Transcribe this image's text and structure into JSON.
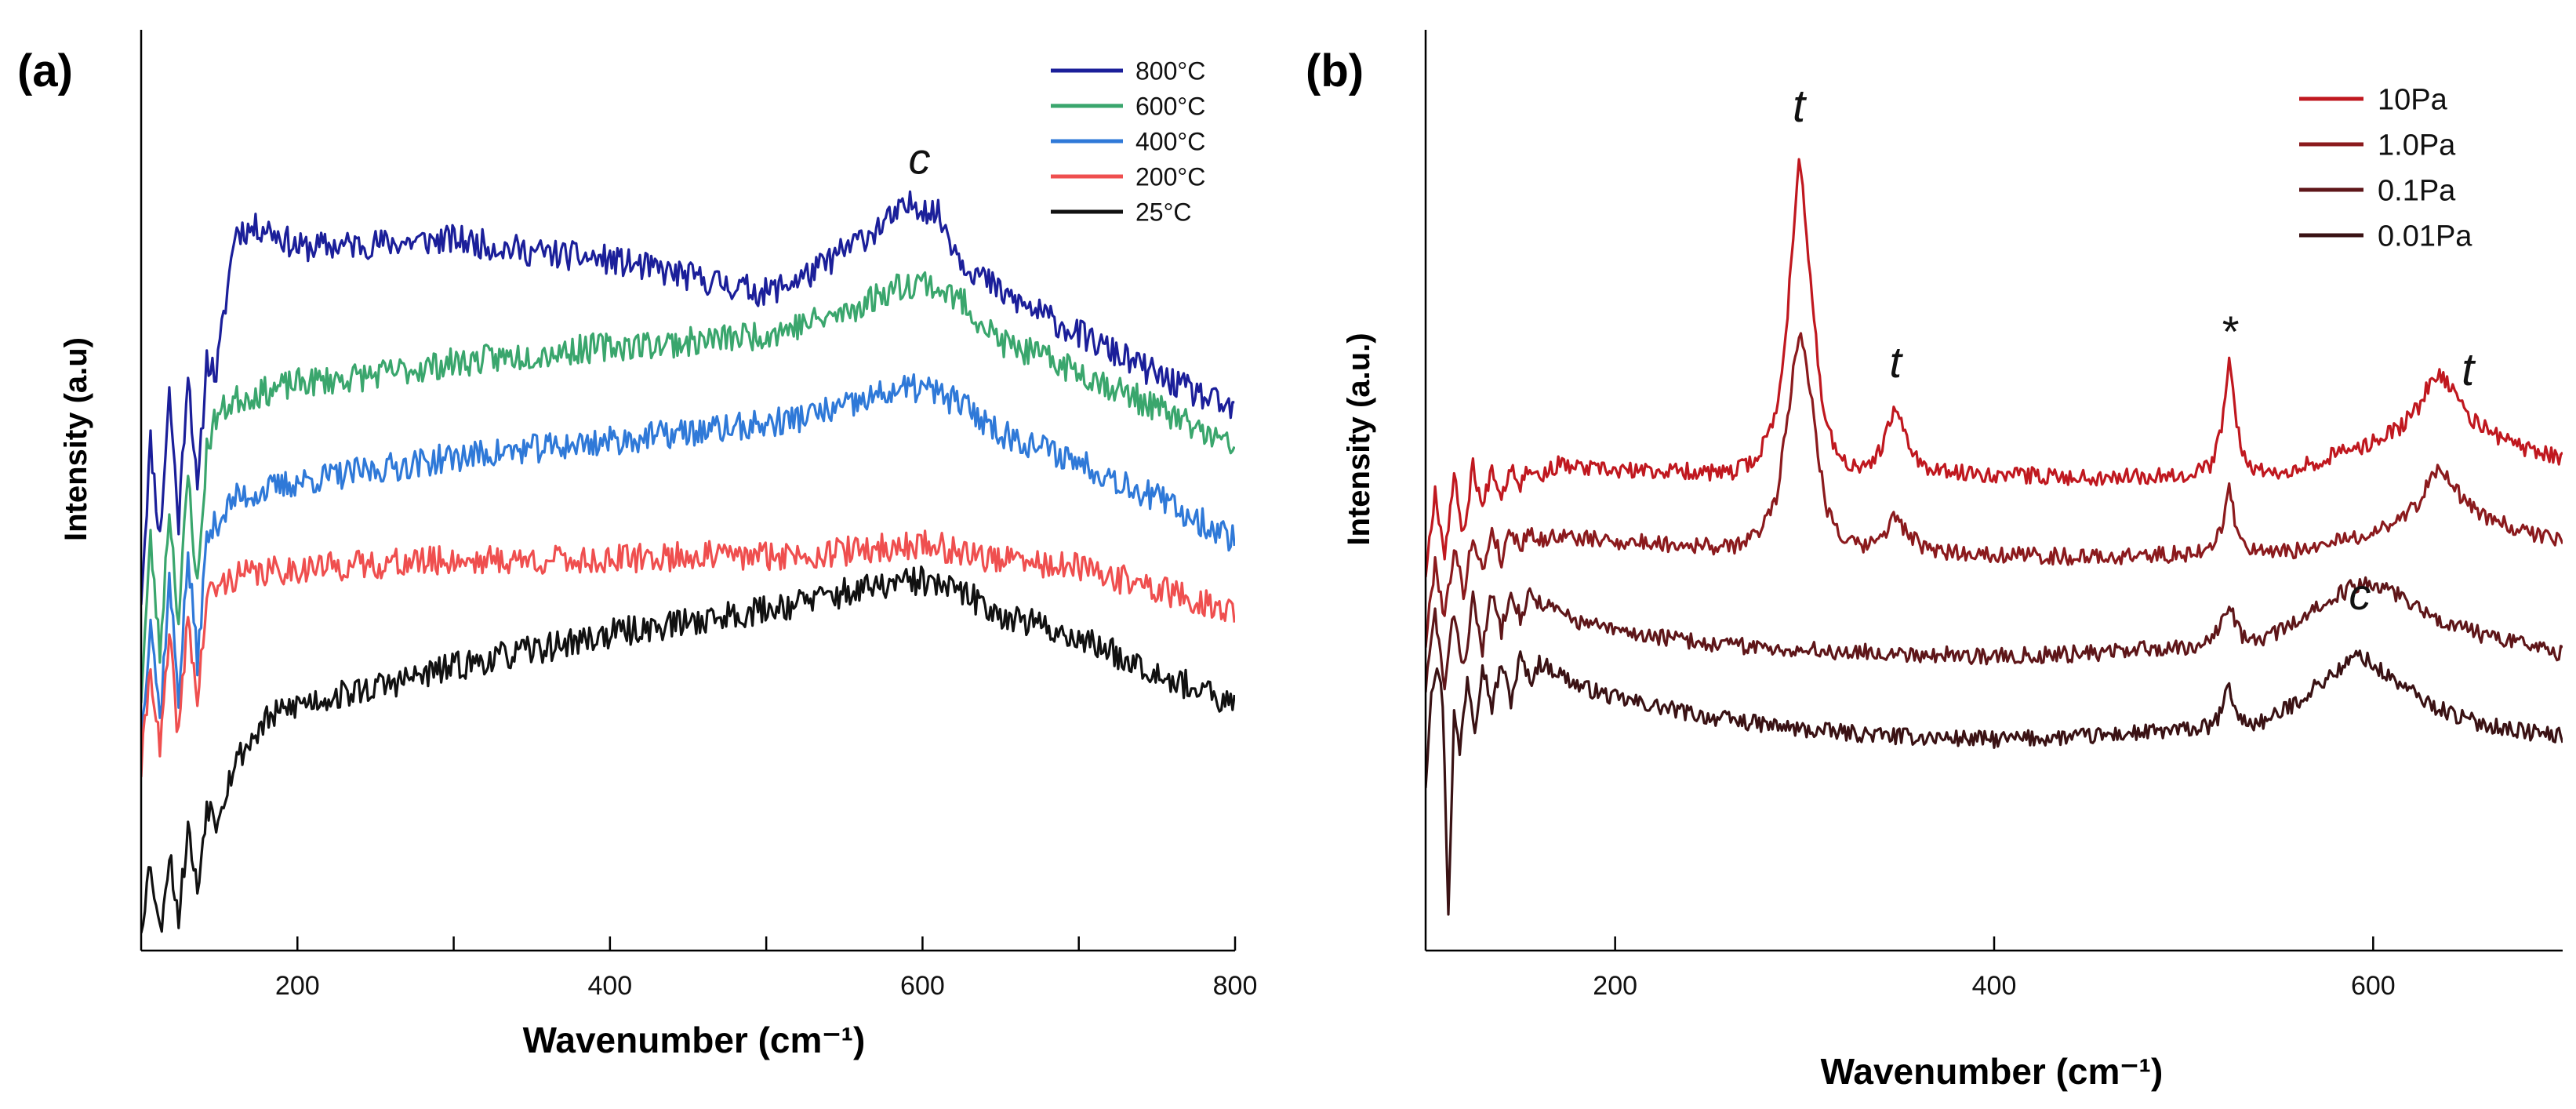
{
  "chart_data": [
    {
      "type": "line",
      "panel_label": "(a)",
      "xlabel": "Wavenumber (cm⁻¹)",
      "ylabel": "Intensity (a.u)",
      "xlim": [
        100,
        800
      ],
      "x_ticks": [
        200,
        400,
        600,
        800
      ],
      "x_tick_labels": [
        "200",
        "400",
        "600",
        "800"
      ],
      "x_minor_ticks": [
        300,
        500,
        700
      ],
      "y_ticks_labeled": false,
      "grid": false,
      "legend_position": "top-right",
      "annotations": [
        {
          "text": "c",
          "x": 598,
          "series": "800°C"
        }
      ],
      "series": [
        {
          "name": "800°C",
          "color": "#1b1f9a",
          "x": [
            100,
            106,
            112,
            118,
            124,
            130,
            136,
            142,
            148,
            160,
            180,
            200,
            250,
            300,
            350,
            400,
            450,
            500,
            530,
            560,
            580,
            595,
            610,
            625,
            650,
            700,
            750,
            800
          ],
          "y": [
            2.1,
            4.0,
            2.8,
            4.6,
            3.0,
            4.9,
            3.3,
            5.0,
            4.8,
            6.55,
            6.6,
            6.35,
            6.4,
            6.45,
            6.3,
            6.2,
            6.0,
            5.8,
            6.05,
            6.45,
            6.7,
            6.9,
            6.75,
            6.2,
            5.8,
            5.3,
            4.8,
            4.35
          ]
        },
        {
          "name": "600°C",
          "color": "#3aa66d",
          "x": [
            100,
            106,
            112,
            118,
            124,
            130,
            136,
            142,
            148,
            160,
            200,
            250,
            300,
            350,
            400,
            450,
            500,
            550,
            580,
            600,
            625,
            650,
            700,
            750,
            800
          ],
          "y": [
            0.9,
            2.8,
            1.4,
            3.2,
            1.8,
            3.6,
            2.2,
            3.9,
            4.3,
            4.5,
            4.7,
            4.8,
            4.95,
            5.05,
            5.15,
            5.2,
            5.3,
            5.55,
            5.85,
            5.95,
            5.7,
            5.2,
            4.85,
            4.4,
            3.9
          ]
        },
        {
          "name": "400°C",
          "color": "#2f79d8",
          "x": [
            100,
            106,
            112,
            118,
            124,
            130,
            136,
            142,
            148,
            160,
            200,
            250,
            300,
            350,
            400,
            450,
            500,
            550,
            580,
            600,
            625,
            650,
            700,
            750,
            800
          ],
          "y": [
            0.3,
            1.9,
            0.6,
            2.3,
            0.9,
            2.6,
            1.3,
            2.8,
            3.0,
            3.3,
            3.5,
            3.65,
            3.8,
            3.9,
            4.0,
            4.1,
            4.2,
            4.4,
            4.6,
            4.65,
            4.45,
            4.1,
            3.75,
            3.3,
            2.8
          ]
        },
        {
          "name": "200°C",
          "color": "#ef4f4f",
          "x": [
            100,
            106,
            112,
            118,
            124,
            130,
            136,
            142,
            148,
            160,
            200,
            250,
            300,
            350,
            400,
            450,
            500,
            550,
            580,
            600,
            625,
            650,
            700,
            750,
            800
          ],
          "y": [
            0.0,
            1.3,
            0.2,
            1.6,
            0.4,
            1.9,
            0.8,
            2.1,
            2.2,
            2.35,
            2.45,
            2.5,
            2.55,
            2.55,
            2.55,
            2.6,
            2.6,
            2.65,
            2.7,
            2.75,
            2.65,
            2.55,
            2.45,
            2.2,
            1.9
          ]
        },
        {
          "name": "25°C",
          "color": "#111111",
          "x": [
            100,
            106,
            112,
            118,
            124,
            130,
            136,
            142,
            148,
            160,
            180,
            200,
            250,
            300,
            350,
            400,
            450,
            500,
            550,
            580,
            600,
            625,
            650,
            700,
            750,
            800
          ],
          "y": [
            -1.9,
            -1.1,
            -2.0,
            -1.0,
            -1.8,
            -0.7,
            -1.5,
            -0.4,
            -0.6,
            0.1,
            0.6,
            0.8,
            1.0,
            1.25,
            1.45,
            1.65,
            1.8,
            1.95,
            2.15,
            2.25,
            2.3,
            2.15,
            1.9,
            1.6,
            1.2,
            0.75
          ]
        }
      ]
    },
    {
      "type": "line",
      "panel_label": "(b)",
      "xlabel": "Wavenumber (cm⁻¹)",
      "ylabel": "Intensity (a.u.)",
      "xlim": [
        100,
        700
      ],
      "x_ticks": [
        200,
        400,
        600
      ],
      "x_tick_labels": [
        "200",
        "400",
        "600"
      ],
      "y_ticks_labeled": false,
      "grid": false,
      "legend_position": "top-right",
      "annotations": [
        {
          "text": "t",
          "x": 297,
          "series": "10Pa"
        },
        {
          "text": "t",
          "x": 348,
          "series": "10Pa"
        },
        {
          "text": "*",
          "x": 524,
          "series": "10Pa"
        },
        {
          "text": "t",
          "x": 650,
          "series": "10Pa"
        },
        {
          "text": "c",
          "x": 593,
          "series": "0.01Pa"
        }
      ],
      "series": [
        {
          "name": "10Pa",
          "color": "#c0181f",
          "x": [
            100,
            105,
            110,
            115,
            120,
            125,
            130,
            135,
            140,
            145,
            150,
            155,
            160,
            170,
            180,
            200,
            240,
            260,
            275,
            285,
            290,
            295,
            297,
            300,
            305,
            310,
            318,
            330,
            340,
            348,
            355,
            365,
            400,
            450,
            500,
            515,
            520,
            524,
            528,
            533,
            545,
            570,
            600,
            615,
            625,
            632,
            640,
            650,
            665,
            680,
            700
          ],
          "y": [
            5.3,
            6.6,
            5.6,
            6.8,
            5.9,
            7.0,
            6.3,
            7.0,
            6.5,
            7.0,
            6.7,
            7.0,
            6.8,
            7.0,
            6.95,
            6.9,
            6.9,
            6.85,
            7.1,
            7.8,
            9.0,
            11.0,
            11.9,
            11.0,
            9.2,
            7.8,
            7.1,
            6.9,
            7.2,
            7.9,
            7.3,
            6.9,
            6.85,
            6.8,
            6.85,
            7.0,
            7.6,
            8.6,
            7.6,
            7.0,
            6.85,
            7.05,
            7.35,
            7.6,
            7.95,
            8.45,
            8.25,
            7.75,
            7.45,
            7.25,
            7.1
          ]
        },
        {
          "name": "1.0Pa",
          "color": "#8b1a1d",
          "x": [
            100,
            105,
            110,
            115,
            120,
            125,
            130,
            135,
            140,
            145,
            150,
            155,
            160,
            170,
            180,
            200,
            240,
            260,
            275,
            285,
            290,
            295,
            298,
            302,
            307,
            312,
            320,
            330,
            340,
            348,
            355,
            365,
            400,
            450,
            500,
            515,
            520,
            524,
            528,
            533,
            545,
            570,
            600,
            615,
            625,
            632,
            640,
            650,
            665,
            680,
            700
          ],
          "y": [
            4.2,
            5.5,
            4.6,
            5.7,
            5.0,
            5.9,
            5.3,
            6.0,
            5.5,
            6.0,
            5.7,
            6.0,
            5.8,
            5.9,
            5.85,
            5.8,
            5.75,
            5.7,
            5.9,
            6.5,
            7.5,
            8.7,
            9.1,
            8.4,
            7.2,
            6.3,
            5.85,
            5.7,
            5.85,
            6.2,
            5.9,
            5.65,
            5.6,
            5.55,
            5.6,
            5.7,
            6.0,
            6.65,
            6.0,
            5.7,
            5.6,
            5.7,
            5.95,
            6.15,
            6.45,
            6.95,
            6.75,
            6.35,
            6.1,
            5.95,
            5.8
          ]
        },
        {
          "name": "0.1Pa",
          "color": "#5e1619",
          "x": [
            100,
            105,
            110,
            115,
            120,
            125,
            130,
            135,
            140,
            145,
            150,
            155,
            160,
            170,
            180,
            200,
            250,
            300,
            350,
            400,
            450,
            500,
            515,
            520,
            524,
            528,
            533,
            545,
            560,
            575,
            590,
            600,
            615,
            630,
            650,
            675,
            700
          ],
          "y": [
            3.5,
            4.7,
            3.5,
            4.7,
            3.8,
            4.9,
            4.1,
            5.0,
            4.4,
            5.1,
            4.6,
            5.0,
            4.85,
            4.7,
            4.55,
            4.4,
            4.2,
            4.1,
            4.05,
            4.0,
            4.05,
            4.15,
            4.25,
            4.5,
            4.9,
            4.45,
            4.25,
            4.3,
            4.55,
            4.85,
            5.1,
            5.15,
            4.95,
            4.65,
            4.4,
            4.2,
            4.05
          ]
        },
        {
          "name": "0.01Pa",
          "color": "#3a1214",
          "x": [
            100,
            103,
            106,
            109,
            112,
            115,
            118,
            122,
            126,
            130,
            135,
            140,
            145,
            150,
            155,
            160,
            170,
            180,
            200,
            250,
            300,
            350,
            400,
            450,
            500,
            515,
            520,
            524,
            528,
            533,
            545,
            560,
            575,
            585,
            593,
            600,
            615,
            630,
            650,
            675,
            700
          ],
          "y": [
            2.0,
            3.5,
            3.9,
            3.3,
            0.0,
            3.1,
            2.5,
            3.7,
            2.9,
            3.9,
            3.2,
            3.9,
            3.3,
            4.0,
            3.6,
            3.9,
            3.75,
            3.55,
            3.35,
            3.05,
            2.85,
            2.75,
            2.7,
            2.75,
            2.85,
            2.9,
            3.15,
            3.55,
            3.1,
            2.95,
            3.0,
            3.3,
            3.65,
            3.85,
            4.05,
            3.85,
            3.55,
            3.25,
            3.0,
            2.85,
            2.75
          ]
        }
      ]
    }
  ]
}
